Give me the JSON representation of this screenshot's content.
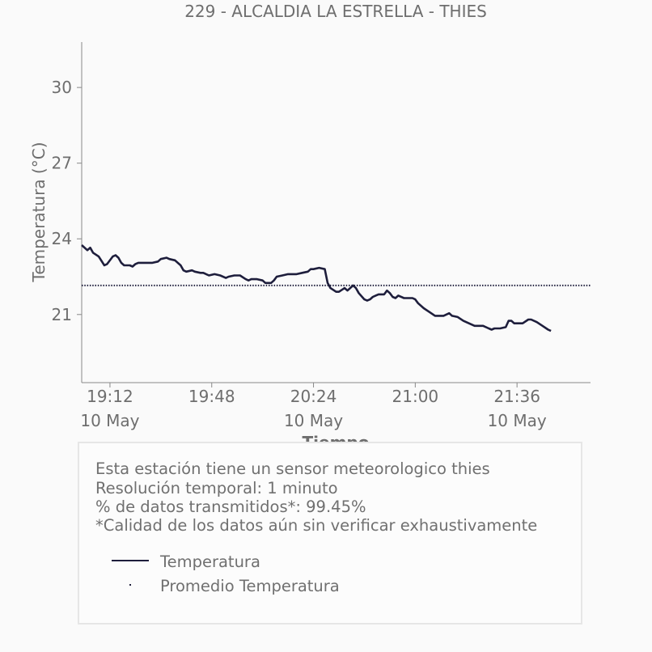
{
  "chart_data": {
    "type": "line",
    "title": "229 - ALCALDIA LA ESTRELLA - THIES",
    "xlabel": "Tiempo",
    "ylabel": "Temperatura (°C)",
    "ylim": [
      18.3,
      31.8
    ],
    "y_ticks": [
      21,
      24,
      27,
      30
    ],
    "x_range_minutes": [
      1142,
      1322
    ],
    "x_ticks": [
      {
        "minute": 1152,
        "time": "19:12",
        "date": "10 May"
      },
      {
        "minute": 1188,
        "time": "19:48",
        "date": ""
      },
      {
        "minute": 1224,
        "time": "20:24",
        "date": "10 May"
      },
      {
        "minute": 1260,
        "time": "21:00",
        "date": ""
      },
      {
        "minute": 1296,
        "time": "21:36",
        "date": "10 May"
      }
    ],
    "grid": false,
    "series": [
      {
        "name": "Temperatura",
        "color": "#1e1e3c",
        "style": "solid",
        "points": [
          [
            1142,
            23.75
          ],
          [
            1144,
            23.55
          ],
          [
            1145,
            23.65
          ],
          [
            1146,
            23.45
          ],
          [
            1148,
            23.3
          ],
          [
            1150,
            22.95
          ],
          [
            1151,
            23.0
          ],
          [
            1153,
            23.3
          ],
          [
            1154,
            23.35
          ],
          [
            1155,
            23.25
          ],
          [
            1156,
            23.05
          ],
          [
            1157,
            22.95
          ],
          [
            1159,
            22.95
          ],
          [
            1160,
            22.9
          ],
          [
            1161,
            23.0
          ],
          [
            1162,
            23.05
          ],
          [
            1164,
            23.05
          ],
          [
            1167,
            23.05
          ],
          [
            1169,
            23.1
          ],
          [
            1170,
            23.2
          ],
          [
            1172,
            23.25
          ],
          [
            1173,
            23.2
          ],
          [
            1175,
            23.15
          ],
          [
            1177,
            22.95
          ],
          [
            1178,
            22.75
          ],
          [
            1179,
            22.7
          ],
          [
            1181,
            22.75
          ],
          [
            1182,
            22.7
          ],
          [
            1184,
            22.65
          ],
          [
            1185,
            22.65
          ],
          [
            1187,
            22.55
          ],
          [
            1189,
            22.6
          ],
          [
            1191,
            22.55
          ],
          [
            1193,
            22.45
          ],
          [
            1194,
            22.5
          ],
          [
            1196,
            22.55
          ],
          [
            1198,
            22.55
          ],
          [
            1200,
            22.4
          ],
          [
            1201,
            22.35
          ],
          [
            1202,
            22.4
          ],
          [
            1204,
            22.4
          ],
          [
            1206,
            22.35
          ],
          [
            1207,
            22.25
          ],
          [
            1209,
            22.25
          ],
          [
            1210,
            22.35
          ],
          [
            1211,
            22.5
          ],
          [
            1213,
            22.55
          ],
          [
            1215,
            22.6
          ],
          [
            1218,
            22.6
          ],
          [
            1220,
            22.65
          ],
          [
            1222,
            22.7
          ],
          [
            1223,
            22.8
          ],
          [
            1224,
            22.8
          ],
          [
            1226,
            22.85
          ],
          [
            1228,
            22.8
          ],
          [
            1229,
            22.25
          ],
          [
            1230,
            22.05
          ],
          [
            1232,
            21.9
          ],
          [
            1233,
            21.9
          ],
          [
            1235,
            22.05
          ],
          [
            1236,
            21.95
          ],
          [
            1238,
            22.15
          ],
          [
            1239,
            22.05
          ],
          [
            1240,
            21.85
          ],
          [
            1242,
            21.6
          ],
          [
            1243,
            21.55
          ],
          [
            1244,
            21.6
          ],
          [
            1245,
            21.7
          ],
          [
            1246,
            21.75
          ],
          [
            1247,
            21.8
          ],
          [
            1249,
            21.8
          ],
          [
            1250,
            21.95
          ],
          [
            1251,
            21.85
          ],
          [
            1252,
            21.7
          ],
          [
            1253,
            21.65
          ],
          [
            1254,
            21.75
          ],
          [
            1256,
            21.65
          ],
          [
            1259,
            21.65
          ],
          [
            1260,
            21.6
          ],
          [
            1261,
            21.45
          ],
          [
            1263,
            21.25
          ],
          [
            1265,
            21.1
          ],
          [
            1267,
            20.95
          ],
          [
            1269,
            20.95
          ],
          [
            1270,
            20.95
          ],
          [
            1272,
            21.05
          ],
          [
            1273,
            20.95
          ],
          [
            1275,
            20.9
          ],
          [
            1277,
            20.75
          ],
          [
            1279,
            20.65
          ],
          [
            1281,
            20.55
          ],
          [
            1284,
            20.55
          ],
          [
            1286,
            20.45
          ],
          [
            1287,
            20.4
          ],
          [
            1288,
            20.45
          ],
          [
            1290,
            20.45
          ],
          [
            1292,
            20.5
          ],
          [
            1293,
            20.75
          ],
          [
            1294,
            20.75
          ],
          [
            1295,
            20.65
          ],
          [
            1298,
            20.65
          ],
          [
            1300,
            20.8
          ],
          [
            1301,
            20.8
          ],
          [
            1303,
            20.7
          ],
          [
            1305,
            20.55
          ],
          [
            1307,
            20.4
          ],
          [
            1308,
            20.35
          ]
        ]
      },
      {
        "name": "Promedio Temperatura",
        "color": "#1e1e3c",
        "style": "dotted",
        "value": 22.15
      }
    ]
  },
  "info": {
    "line1": "Esta estación tiene un sensor meteorologico thies",
    "line2": "Resolución temporal: 1 minuto",
    "line3": "% de datos transmitidos*: 99.45%",
    "line4": "*Calidad de los datos aún sin verificar exhaustivamente"
  },
  "legend": {
    "item1": "Temperatura",
    "item2": "Promedio Temperatura"
  }
}
